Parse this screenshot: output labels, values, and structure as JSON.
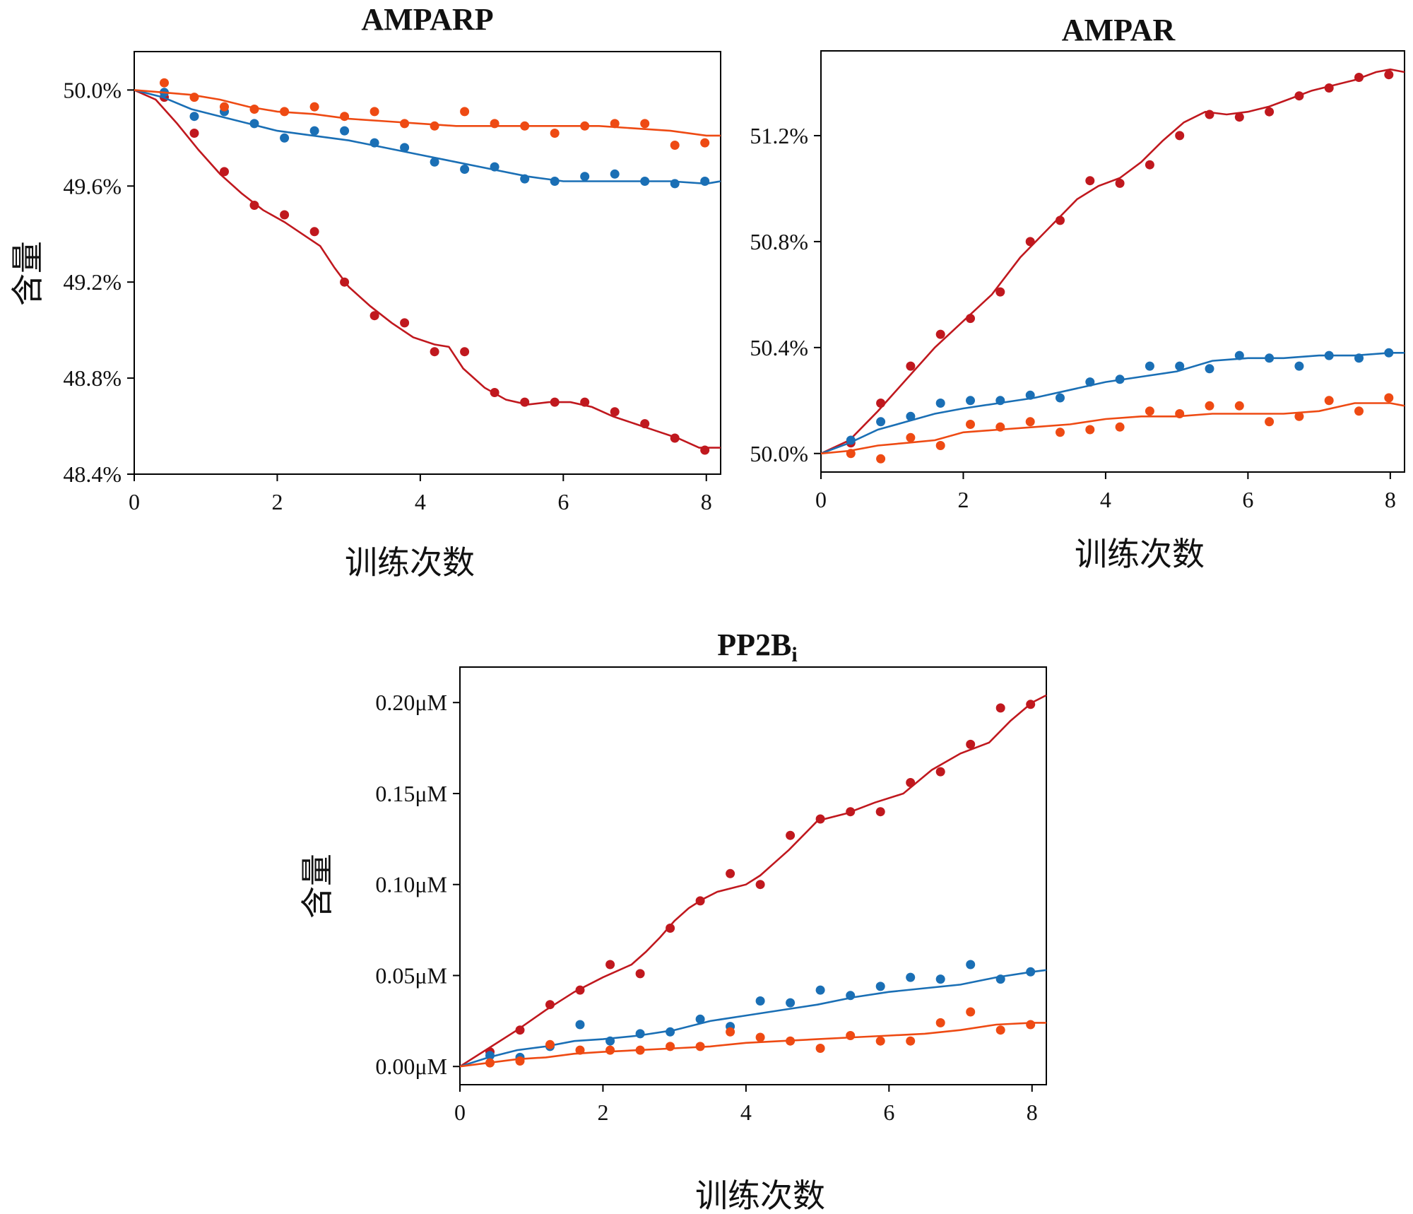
{
  "colors": {
    "dark_red": "#c0181e",
    "blue": "#1a6fb5",
    "orange": "#ee4a13"
  },
  "chart_data": [
    {
      "id": "ampar_p",
      "type": "scatter",
      "title": "AMPARP",
      "xlabel": "训练次数",
      "ylabel": "含量",
      "xlim": [
        0,
        8.2
      ],
      "ylim": [
        48.4,
        50.16
      ],
      "xticks": [
        0,
        2,
        4,
        6,
        8
      ],
      "xtick_labels": [
        "0",
        "2",
        "4",
        "6",
        "8"
      ],
      "yticks": [
        50.0,
        49.6,
        49.2,
        48.8,
        48.4
      ],
      "ytick_labels": [
        "50.0%",
        "49.6%",
        "49.2%",
        "48.8%",
        "48.4%"
      ],
      "series": [
        {
          "name": "dark-red",
          "color": "#c0181e",
          "x": [
            0.42,
            0.84,
            1.26,
            1.68,
            2.1,
            2.52,
            2.94,
            3.36,
            3.78,
            4.2,
            4.62,
            5.04,
            5.46,
            5.88,
            6.3,
            6.72,
            7.14,
            7.56,
            7.98
          ],
          "y": [
            49.97,
            49.82,
            49.66,
            49.52,
            49.48,
            49.41,
            49.2,
            49.06,
            49.03,
            48.91,
            48.91,
            48.74,
            48.7,
            48.7,
            48.7,
            48.66,
            48.61,
            48.55,
            48.5
          ],
          "fit_x": [
            0,
            0.3,
            0.6,
            0.9,
            1.2,
            1.5,
            1.8,
            2.1,
            2.4,
            2.6,
            2.8,
            3.0,
            3.3,
            3.6,
            3.9,
            4.2,
            4.4,
            4.6,
            4.9,
            5.2,
            5.5,
            5.8,
            6.1,
            6.4,
            6.7,
            7.0,
            7.3,
            7.6,
            7.9,
            8.2
          ],
          "fit_y": [
            50.0,
            49.96,
            49.86,
            49.75,
            49.65,
            49.57,
            49.5,
            49.45,
            49.39,
            49.35,
            49.26,
            49.18,
            49.1,
            49.03,
            48.97,
            48.94,
            48.93,
            48.84,
            48.76,
            48.71,
            48.69,
            48.7,
            48.7,
            48.68,
            48.64,
            48.61,
            48.58,
            48.55,
            48.51,
            48.51
          ]
        },
        {
          "name": "blue",
          "color": "#1a6fb5",
          "x": [
            0.42,
            0.84,
            1.26,
            1.68,
            2.1,
            2.52,
            2.94,
            3.36,
            3.78,
            4.2,
            4.62,
            5.04,
            5.46,
            5.88,
            6.3,
            6.72,
            7.14,
            7.56,
            7.98
          ],
          "y": [
            49.99,
            49.89,
            49.91,
            49.86,
            49.8,
            49.83,
            49.83,
            49.78,
            49.76,
            49.7,
            49.67,
            49.68,
            49.63,
            49.62,
            49.64,
            49.65,
            49.62,
            49.61,
            49.62
          ],
          "fit_x": [
            0,
            0.4,
            0.8,
            1.2,
            1.6,
            2.0,
            2.5,
            3.0,
            3.5,
            4.0,
            4.5,
            5.0,
            5.5,
            6.0,
            6.5,
            7.0,
            7.5,
            8.0,
            8.2
          ],
          "fit_y": [
            50.0,
            49.97,
            49.92,
            49.89,
            49.86,
            49.83,
            49.81,
            49.79,
            49.76,
            49.73,
            49.7,
            49.67,
            49.64,
            49.62,
            49.62,
            49.62,
            49.62,
            49.61,
            49.62
          ]
        },
        {
          "name": "orange",
          "color": "#ee4a13",
          "x": [
            0.42,
            0.84,
            1.26,
            1.68,
            2.1,
            2.52,
            2.94,
            3.36,
            3.78,
            4.2,
            4.62,
            5.04,
            5.46,
            5.88,
            6.3,
            6.72,
            7.14,
            7.56,
            7.98
          ],
          "y": [
            50.03,
            49.97,
            49.93,
            49.92,
            49.91,
            49.93,
            49.89,
            49.91,
            49.86,
            49.85,
            49.91,
            49.86,
            49.85,
            49.82,
            49.85,
            49.86,
            49.86,
            49.77,
            49.78
          ],
          "fit_x": [
            0,
            0.4,
            0.8,
            1.2,
            1.6,
            2.0,
            2.5,
            3.0,
            3.5,
            4.0,
            4.5,
            5.0,
            5.5,
            6.0,
            6.5,
            7.0,
            7.5,
            8.0,
            8.2
          ],
          "fit_y": [
            50.0,
            49.99,
            49.98,
            49.96,
            49.93,
            49.91,
            49.9,
            49.88,
            49.87,
            49.86,
            49.85,
            49.85,
            49.85,
            49.85,
            49.85,
            49.84,
            49.83,
            49.81,
            49.81
          ]
        }
      ]
    },
    {
      "id": "ampar",
      "type": "scatter",
      "title": "AMPAR",
      "xlabel": "训练次数",
      "ylabel": "",
      "xlim": [
        0,
        8.2
      ],
      "ylim": [
        49.93,
        51.52
      ],
      "xticks": [
        0,
        2,
        4,
        6,
        8
      ],
      "xtick_labels": [
        "0",
        "2",
        "4",
        "6",
        "8"
      ],
      "yticks": [
        51.2,
        50.8,
        50.4,
        50.0
      ],
      "ytick_labels": [
        "51.2%",
        "50.8%",
        "50.4%",
        "50.0%"
      ],
      "series": [
        {
          "name": "dark-red",
          "color": "#c0181e",
          "x": [
            0.42,
            0.84,
            1.26,
            1.68,
            2.1,
            2.52,
            2.94,
            3.36,
            3.78,
            4.2,
            4.62,
            5.04,
            5.46,
            5.88,
            6.3,
            6.72,
            7.14,
            7.56,
            7.98
          ],
          "y": [
            50.04,
            50.19,
            50.33,
            50.45,
            50.51,
            50.61,
            50.8,
            50.88,
            51.03,
            51.02,
            51.09,
            51.2,
            51.28,
            51.27,
            51.29,
            51.35,
            51.38,
            51.42,
            51.43
          ],
          "fit_x": [
            0,
            0.4,
            0.8,
            1.2,
            1.6,
            2.0,
            2.4,
            2.8,
            3.2,
            3.6,
            3.9,
            4.2,
            4.5,
            4.8,
            5.1,
            5.4,
            5.7,
            6.0,
            6.3,
            6.6,
            6.9,
            7.2,
            7.5,
            7.8,
            8.0,
            8.2
          ],
          "fit_y": [
            50.0,
            50.05,
            50.16,
            50.28,
            50.4,
            50.5,
            50.6,
            50.74,
            50.85,
            50.96,
            51.01,
            51.04,
            51.1,
            51.18,
            51.25,
            51.29,
            51.28,
            51.29,
            51.31,
            51.34,
            51.37,
            51.39,
            51.41,
            51.44,
            51.45,
            51.44
          ]
        },
        {
          "name": "blue",
          "color": "#1a6fb5",
          "x": [
            0.42,
            0.84,
            1.26,
            1.68,
            2.1,
            2.52,
            2.94,
            3.36,
            3.78,
            4.2,
            4.62,
            5.04,
            5.46,
            5.88,
            6.3,
            6.72,
            7.14,
            7.56,
            7.98
          ],
          "y": [
            50.05,
            50.12,
            50.14,
            50.19,
            50.2,
            50.2,
            50.22,
            50.21,
            50.27,
            50.28,
            50.33,
            50.33,
            50.32,
            50.37,
            50.36,
            50.33,
            50.37,
            50.36,
            50.38
          ],
          "fit_x": [
            0,
            0.4,
            0.8,
            1.2,
            1.6,
            2.0,
            2.5,
            3.0,
            3.5,
            4.0,
            4.5,
            5.0,
            5.5,
            6.0,
            6.5,
            7.0,
            7.5,
            8.0,
            8.2
          ],
          "fit_y": [
            50.0,
            50.04,
            50.09,
            50.12,
            50.15,
            50.17,
            50.19,
            50.21,
            50.24,
            50.27,
            50.29,
            50.31,
            50.35,
            50.36,
            50.36,
            50.37,
            50.37,
            50.38,
            50.38
          ]
        },
        {
          "name": "orange",
          "color": "#ee4a13",
          "x": [
            0.42,
            0.84,
            1.26,
            1.68,
            2.1,
            2.52,
            2.94,
            3.36,
            3.78,
            4.2,
            4.62,
            5.04,
            5.46,
            5.88,
            6.3,
            6.72,
            7.14,
            7.56,
            7.98
          ],
          "y": [
            50.0,
            49.98,
            50.06,
            50.03,
            50.11,
            50.1,
            50.12,
            50.08,
            50.09,
            50.1,
            50.16,
            50.15,
            50.18,
            50.18,
            50.12,
            50.14,
            50.2,
            50.16,
            50.21
          ],
          "fit_x": [
            0,
            0.4,
            0.8,
            1.2,
            1.6,
            2.0,
            2.5,
            3.0,
            3.5,
            4.0,
            4.5,
            5.0,
            5.5,
            6.0,
            6.5,
            7.0,
            7.5,
            8.0,
            8.2
          ],
          "fit_y": [
            50.0,
            50.01,
            50.03,
            50.04,
            50.05,
            50.08,
            50.09,
            50.1,
            50.11,
            50.13,
            50.14,
            50.14,
            50.15,
            50.15,
            50.15,
            50.16,
            50.19,
            50.19,
            50.18
          ]
        }
      ]
    },
    {
      "id": "pp2bi",
      "type": "scatter",
      "title_main": "PP2B",
      "title_sub": "i",
      "xlabel": "训练次数",
      "ylabel": "含量",
      "xlim": [
        0,
        8.2
      ],
      "ylim": [
        -0.01,
        0.2195
      ],
      "xticks": [
        0,
        2,
        4,
        6,
        8
      ],
      "xtick_labels": [
        "0",
        "2",
        "4",
        "6",
        "8"
      ],
      "yticks": [
        0.2,
        0.15,
        0.1,
        0.05,
        0.0
      ],
      "ytick_labels": [
        "0.20μM",
        "0.15μM",
        "0.10μM",
        "0.05μM",
        "0.00μM"
      ],
      "series": [
        {
          "name": "dark-red",
          "color": "#c0181e",
          "x": [
            0.42,
            0.84,
            1.26,
            1.68,
            2.1,
            2.52,
            2.94,
            3.36,
            3.78,
            4.2,
            4.62,
            5.04,
            5.46,
            5.88,
            6.3,
            6.72,
            7.14,
            7.56,
            7.98
          ],
          "y": [
            0.008,
            0.02,
            0.034,
            0.042,
            0.056,
            0.051,
            0.076,
            0.091,
            0.106,
            0.1,
            0.127,
            0.136,
            0.14,
            0.14,
            0.156,
            0.162,
            0.177,
            0.197,
            0.199
          ],
          "fit_x": [
            0,
            0.4,
            0.8,
            1.2,
            1.6,
            2.0,
            2.4,
            2.6,
            2.8,
            3.0,
            3.2,
            3.4,
            3.6,
            4.0,
            4.2,
            4.4,
            4.6,
            4.8,
            5.0,
            5.4,
            5.8,
            6.2,
            6.6,
            7.0,
            7.4,
            7.7,
            8.0,
            8.2
          ],
          "fit_y": [
            0.0,
            0.01,
            0.02,
            0.031,
            0.041,
            0.049,
            0.056,
            0.063,
            0.071,
            0.08,
            0.087,
            0.092,
            0.096,
            0.1,
            0.105,
            0.112,
            0.119,
            0.127,
            0.135,
            0.139,
            0.145,
            0.15,
            0.163,
            0.172,
            0.178,
            0.19,
            0.2,
            0.204
          ]
        },
        {
          "name": "blue",
          "color": "#1a6fb5",
          "x": [
            0.42,
            0.84,
            1.26,
            1.68,
            2.1,
            2.52,
            2.94,
            3.36,
            3.78,
            4.2,
            4.62,
            5.04,
            5.46,
            5.88,
            6.3,
            6.72,
            7.14,
            7.56,
            7.98
          ],
          "y": [
            0.006,
            0.005,
            0.011,
            0.023,
            0.014,
            0.018,
            0.019,
            0.026,
            0.022,
            0.036,
            0.035,
            0.042,
            0.039,
            0.044,
            0.049,
            0.048,
            0.056,
            0.048,
            0.052
          ],
          "fit_x": [
            0,
            0.4,
            0.8,
            1.2,
            1.6,
            2.0,
            2.5,
            3.0,
            3.5,
            4.0,
            4.5,
            5.0,
            5.5,
            6.0,
            6.5,
            7.0,
            7.5,
            8.0,
            8.2
          ],
          "fit_y": [
            0.0,
            0.005,
            0.009,
            0.011,
            0.014,
            0.015,
            0.017,
            0.02,
            0.025,
            0.028,
            0.031,
            0.034,
            0.038,
            0.041,
            0.043,
            0.045,
            0.049,
            0.052,
            0.053
          ]
        },
        {
          "name": "orange",
          "color": "#ee4a13",
          "x": [
            0.42,
            0.84,
            1.26,
            1.68,
            2.1,
            2.52,
            2.94,
            3.36,
            3.78,
            4.2,
            4.62,
            5.04,
            5.46,
            5.88,
            6.3,
            6.72,
            7.14,
            7.56,
            7.98
          ],
          "y": [
            0.002,
            0.003,
            0.012,
            0.009,
            0.009,
            0.009,
            0.011,
            0.011,
            0.019,
            0.016,
            0.014,
            0.01,
            0.017,
            0.014,
            0.014,
            0.024,
            0.03,
            0.02,
            0.023
          ],
          "fit_x": [
            0,
            0.4,
            0.8,
            1.2,
            1.6,
            2.0,
            2.5,
            3.0,
            3.5,
            4.0,
            4.5,
            5.0,
            5.5,
            6.0,
            6.5,
            7.0,
            7.5,
            8.0,
            8.2
          ],
          "fit_y": [
            0.0,
            0.002,
            0.004,
            0.005,
            0.007,
            0.008,
            0.009,
            0.01,
            0.011,
            0.013,
            0.014,
            0.015,
            0.016,
            0.017,
            0.018,
            0.02,
            0.023,
            0.024,
            0.024
          ]
        }
      ]
    }
  ]
}
